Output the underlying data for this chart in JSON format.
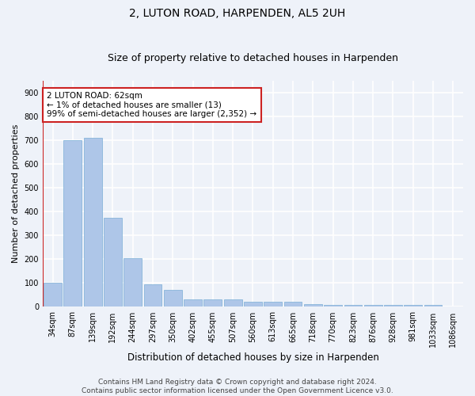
{
  "title": "2, LUTON ROAD, HARPENDEN, AL5 2UH",
  "subtitle": "Size of property relative to detached houses in Harpenden",
  "xlabel": "Distribution of detached houses by size in Harpenden",
  "ylabel": "Number of detached properties",
  "categories": [
    "34sqm",
    "87sqm",
    "139sqm",
    "192sqm",
    "244sqm",
    "297sqm",
    "350sqm",
    "402sqm",
    "455sqm",
    "507sqm",
    "560sqm",
    "613sqm",
    "665sqm",
    "718sqm",
    "770sqm",
    "823sqm",
    "876sqm",
    "928sqm",
    "981sqm",
    "1033sqm",
    "1086sqm"
  ],
  "values": [
    100,
    700,
    710,
    375,
    205,
    95,
    72,
    30,
    30,
    30,
    20,
    22,
    22,
    10,
    8,
    8,
    8,
    8,
    8,
    8,
    0
  ],
  "bar_color": "#aec6e8",
  "bar_edge_color": "#7aaed6",
  "highlight_edge_color": "#cc2222",
  "annotation_text": "2 LUTON ROAD: 62sqm\n← 1% of detached houses are smaller (13)\n99% of semi-detached houses are larger (2,352) →",
  "annotation_box_color": "#ffffff",
  "annotation_box_edge_color": "#cc2222",
  "ylim": [
    0,
    950
  ],
  "yticks": [
    0,
    100,
    200,
    300,
    400,
    500,
    600,
    700,
    800,
    900
  ],
  "vline_color": "#cc2222",
  "background_color": "#eef2f9",
  "plot_background_color": "#eef2f9",
  "grid_color": "#ffffff",
  "footer": "Contains HM Land Registry data © Crown copyright and database right 2024.\nContains public sector information licensed under the Open Government Licence v3.0.",
  "title_fontsize": 10,
  "subtitle_fontsize": 9,
  "xlabel_fontsize": 8.5,
  "ylabel_fontsize": 8,
  "tick_fontsize": 7,
  "annotation_fontsize": 7.5,
  "footer_fontsize": 6.5
}
